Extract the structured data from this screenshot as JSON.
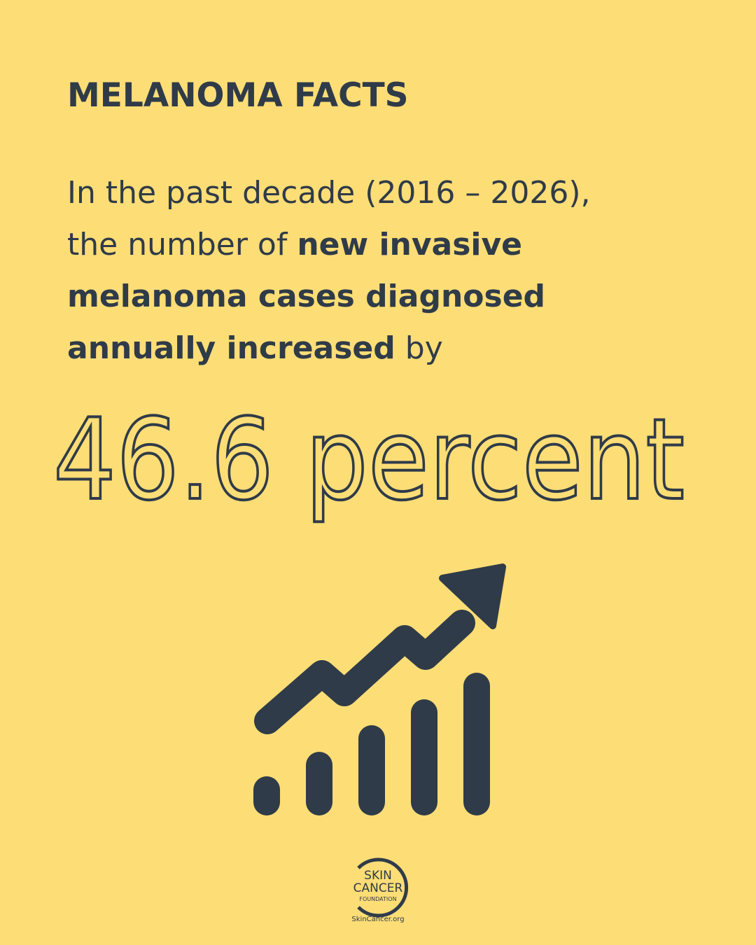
{
  "header": {
    "title": "MELANOMA FACTS"
  },
  "body": {
    "lines": [
      [
        {
          "text": "In the past decade (2016 – 2026),"
        }
      ],
      [
        {
          "text": "the number of "
        },
        {
          "text": "new invasive",
          "bold": true
        }
      ],
      [
        {
          "text": "melanoma cases diagnosed",
          "bold": true
        }
      ],
      [
        {
          "text": "annually increased",
          "bold": true
        },
        {
          "text": " by"
        }
      ]
    ]
  },
  "highlight": {
    "text": "46.6 percent"
  },
  "logo": {
    "line1": "SKIN",
    "line2": "CANCER",
    "line3": "FOUNDATION",
    "url": "SkinCancer.org"
  }
}
